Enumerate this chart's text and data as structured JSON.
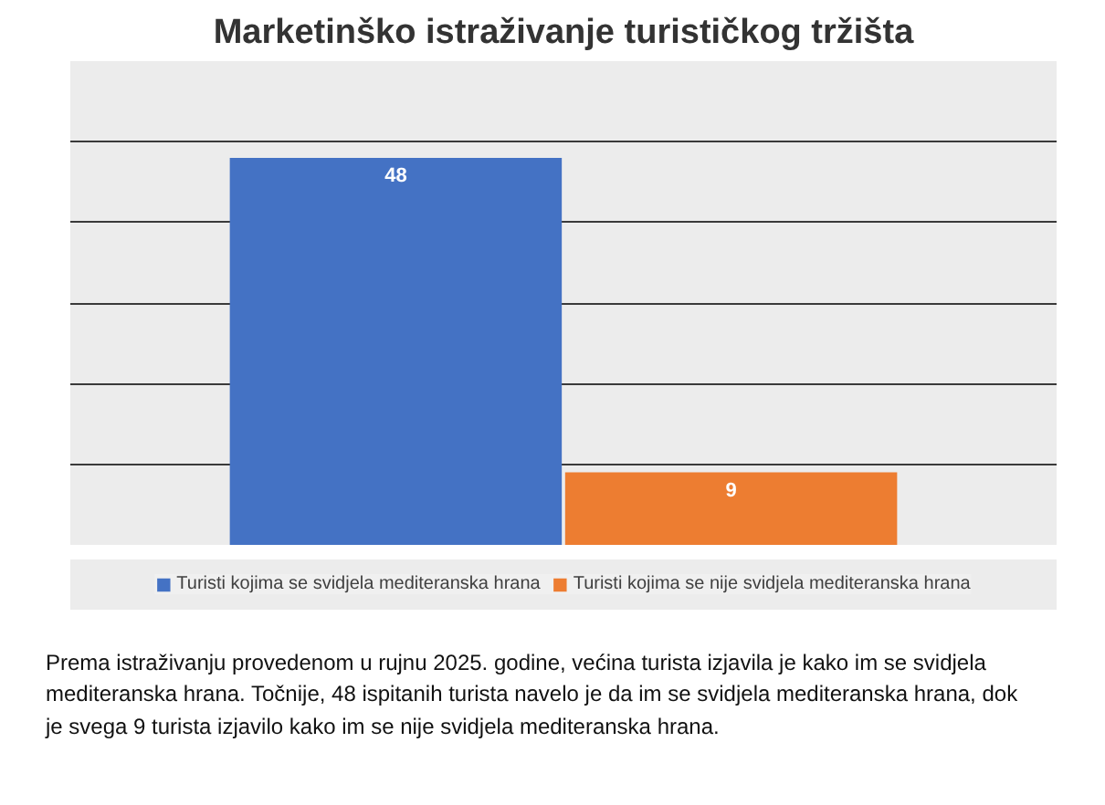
{
  "chart_data": {
    "type": "bar",
    "title": "Marketinško istraživanje turističkog tržišta",
    "categories": [
      null
    ],
    "series": [
      {
        "name": "Turisti kojima se svidjela mediteranska hrana",
        "color": "#4472c4",
        "values": [
          48
        ]
      },
      {
        "name": "Turisti kojima se nije svidjela mediteranska hrana",
        "color": "#ed7d31",
        "values": [
          9
        ]
      }
    ],
    "ylim": [
      0,
      60
    ],
    "yticks": [
      {
        "value": 0,
        "label": null
      },
      {
        "value": 10,
        "label": null
      },
      {
        "value": 20,
        "label": null
      },
      {
        "value": 30,
        "label": null
      },
      {
        "value": 40,
        "label": null
      },
      {
        "value": 50,
        "label": null
      },
      {
        "value": 60,
        "label": null
      }
    ],
    "grid": "y",
    "legend": "bottom",
    "tick_labels": false,
    "data_labels": true,
    "annotations": [
      "Prema istraživanju provedenom u rujnu 2025. godine, većina turista izjavila je kako im se svidjela mediteranska hrana. Točnije, 48 ispitanih turista navelo je da im se svidjela mediteranska hrana, dok je svega 9 turista izjavilo kako im se nije svidjela mediteranska hrana."
    ]
  }
}
